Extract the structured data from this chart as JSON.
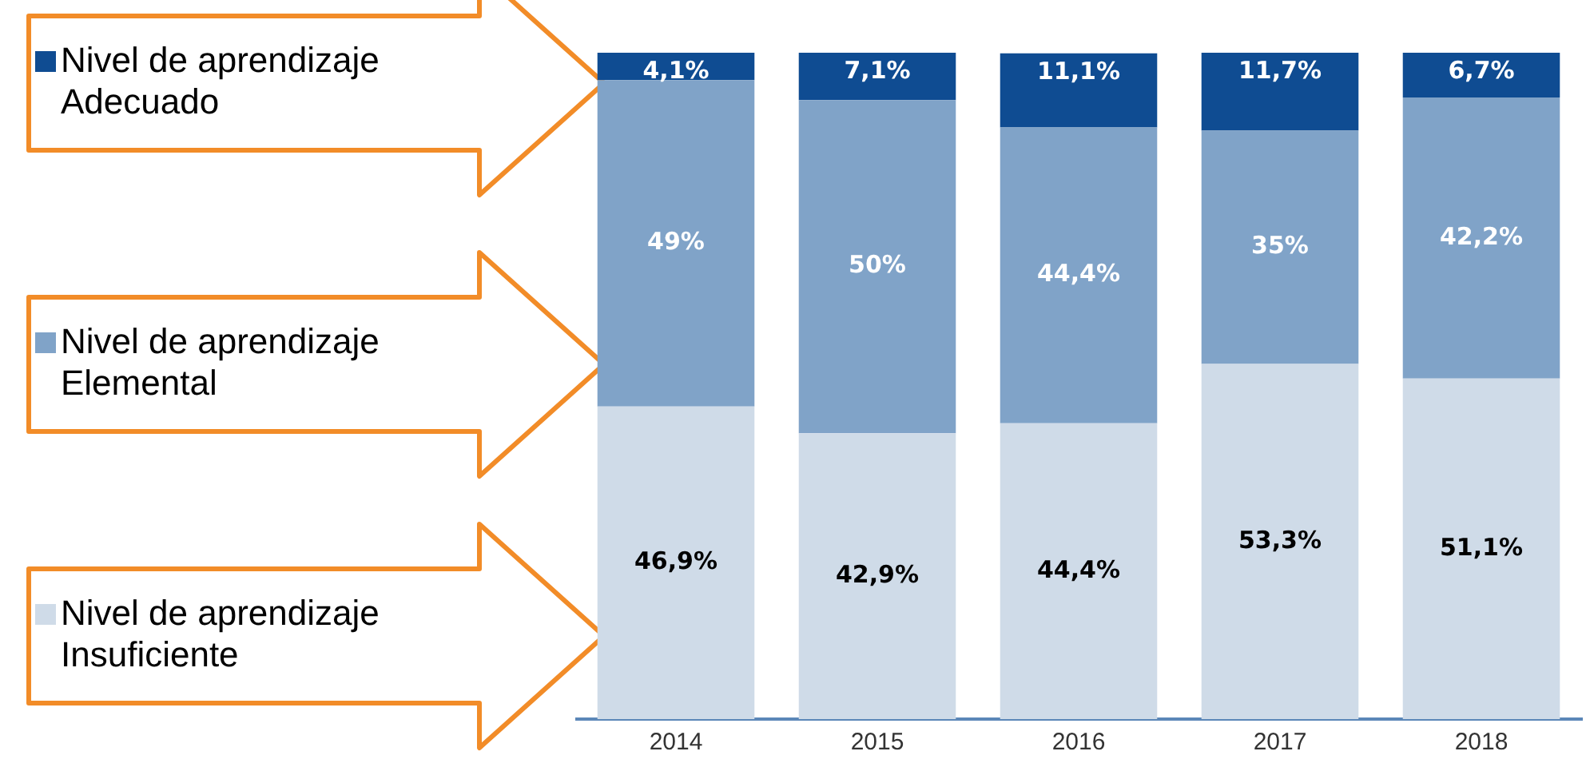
{
  "chart_data": {
    "type": "bar",
    "stacked": true,
    "categories": [
      "2014",
      "2015",
      "2016",
      "2017",
      "2018"
    ],
    "series": [
      {
        "name": "Nivel de aprendizaje Insuficiente",
        "color": "#cfdbe8",
        "values": [
          46.9,
          42.9,
          44.4,
          53.3,
          51.1
        ],
        "value_labels": [
          "46,9%",
          "42,9%",
          "44,4%",
          "53,3%",
          "51,1%"
        ]
      },
      {
        "name": "Nivel de aprendizaje Elemental",
        "color": "#80a3c8",
        "values": [
          49,
          50,
          44.4,
          35,
          42.2
        ],
        "value_labels": [
          "49%",
          "50%",
          "44,4%",
          "35%",
          "42,2%"
        ]
      },
      {
        "name": "Nivel de aprendizaje Adecuado",
        "color": "#0f4c92",
        "values": [
          4.1,
          7.1,
          11.1,
          11.7,
          6.7
        ],
        "value_labels": [
          "4,1%",
          "7,1%",
          "11,1%",
          "11,7%",
          "6,7%"
        ]
      }
    ],
    "legend": "left",
    "grid": false
  }
}
